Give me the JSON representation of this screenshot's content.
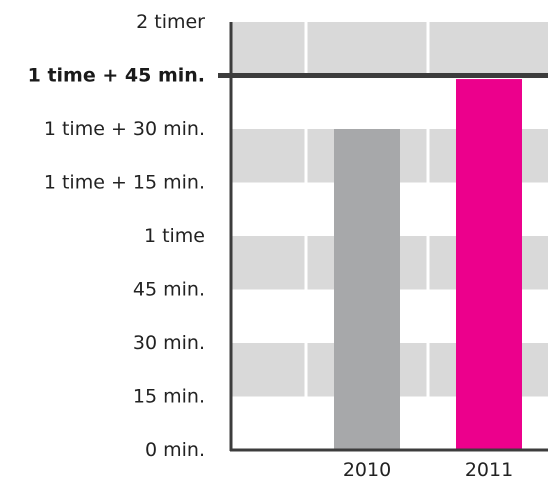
{
  "chart_data": {
    "type": "bar",
    "categories": [
      "2010",
      "2011"
    ],
    "values": [
      90,
      104
    ],
    "value_unit": "minutes",
    "colors": [
      "#a7a8aa",
      "#ec008c"
    ],
    "ylim": [
      0,
      120
    ],
    "y_ticks": [
      {
        "value": 0,
        "label": "0 min."
      },
      {
        "value": 15,
        "label": "15 min."
      },
      {
        "value": 30,
        "label": "30 min."
      },
      {
        "value": 45,
        "label": "45 min."
      },
      {
        "value": 60,
        "label": "1 time"
      },
      {
        "value": 75,
        "label": "1 time + 15 min."
      },
      {
        "value": 90,
        "label": "1 time + 30 min."
      },
      {
        "value": 105,
        "label": "1 time + 45 min."
      },
      {
        "value": 120,
        "label": "2 timer"
      }
    ],
    "reference_line": {
      "value": 105,
      "label": "1 time + 45 min."
    },
    "band_color": "#d9d9d9",
    "axis_color": "#3c3c3c",
    "grid": true,
    "title": "",
    "xlabel": "",
    "ylabel": ""
  }
}
